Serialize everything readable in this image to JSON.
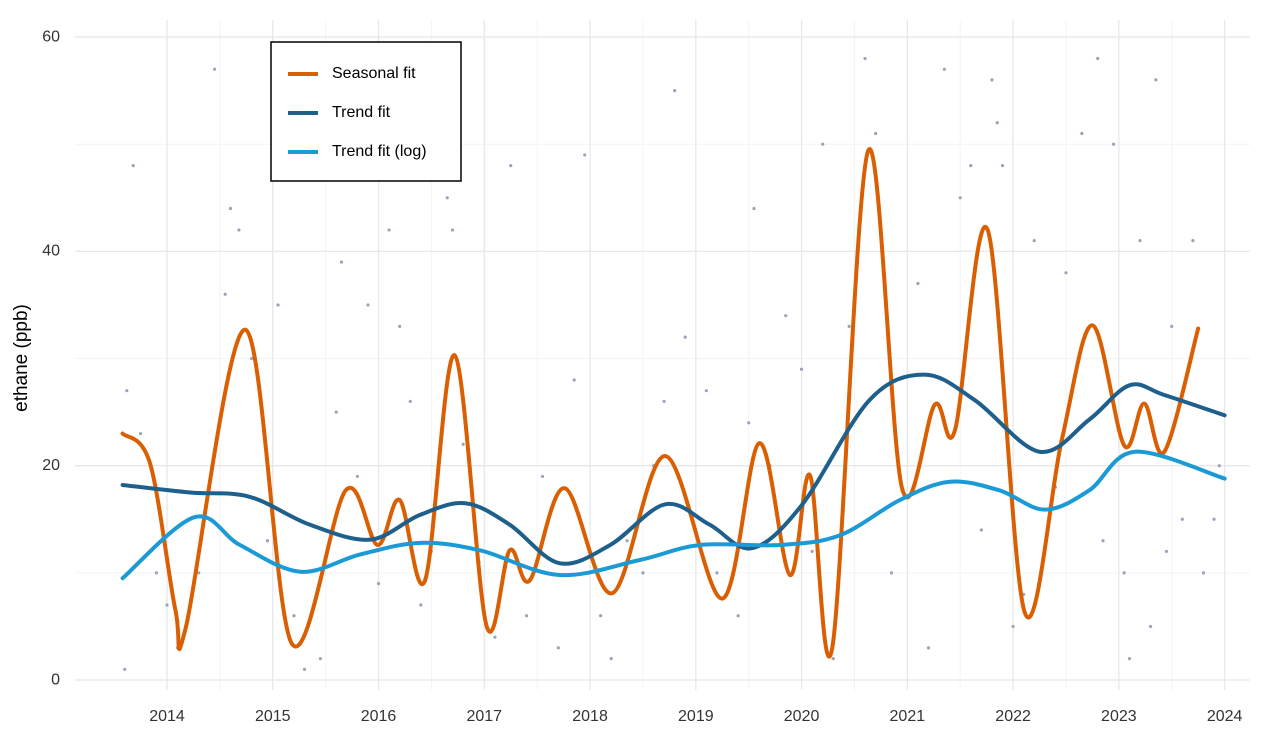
{
  "chart_data": {
    "type": "line",
    "ylabel": "ethane (ppb)",
    "xlim": [
      2013.13,
      2024.24
    ],
    "ylim": [
      -0.93,
      61.59
    ],
    "xticks": [
      2014,
      2015,
      2016,
      2017,
      2018,
      2019,
      2020,
      2021,
      2022,
      2023,
      2024
    ],
    "yticks": [
      0,
      20,
      40,
      60
    ],
    "grid": true,
    "minor_grid": true,
    "legend": "top-left",
    "series": [
      {
        "name": "Seasonal fit",
        "color": "#d95f02",
        "x": [
          2013.58,
          2013.84,
          2014.08,
          2014.18,
          2014.74,
          2015.18,
          2015.69,
          2015.99,
          2016.2,
          2016.44,
          2016.72,
          2017.02,
          2017.24,
          2017.43,
          2017.76,
          2018.21,
          2018.71,
          2019.25,
          2019.6,
          2019.89,
          2020.08,
          2020.29,
          2020.63,
          2020.95,
          2021.26,
          2021.45,
          2021.76,
          2022.11,
          2022.46,
          2022.75,
          2023.05,
          2023.24,
          2023.43,
          2023.75
        ],
        "values": [
          23.0,
          20.2,
          6.5,
          5.0,
          32.7,
          3.4,
          17.7,
          12.6,
          16.8,
          9.3,
          30.3,
          5.1,
          12.1,
          9.3,
          17.9,
          8.1,
          20.9,
          7.6,
          22.1,
          9.8,
          19.1,
          3.0,
          49.4,
          17.9,
          25.7,
          23.3,
          42.0,
          6.3,
          22.4,
          33.1,
          21.9,
          25.8,
          21.3,
          32.8
        ]
      },
      {
        "name": "Trend fit",
        "color": "#1f5f8b",
        "x": [
          2013.58,
          2014.22,
          2014.78,
          2015.35,
          2015.92,
          2016.39,
          2016.82,
          2017.24,
          2017.71,
          2018.19,
          2018.71,
          2019.13,
          2019.53,
          2020.0,
          2020.64,
          2021.16,
          2021.64,
          2022.25,
          2022.72,
          2023.1,
          2023.43,
          2024.0
        ],
        "values": [
          18.2,
          17.5,
          17.1,
          14.5,
          13.1,
          15.4,
          16.5,
          14.5,
          10.9,
          12.6,
          16.4,
          14.5,
          12.3,
          16.3,
          26.1,
          28.5,
          26.1,
          21.3,
          24.3,
          27.5,
          26.6,
          24.7
        ]
      },
      {
        "name": "Trend fit (log)",
        "color": "#1b9ad6",
        "x": [
          2013.58,
          2014.26,
          2014.69,
          2015.26,
          2015.82,
          2016.39,
          2016.96,
          2017.71,
          2018.47,
          2019.04,
          2019.79,
          2020.36,
          2020.93,
          2021.4,
          2021.87,
          2022.3,
          2022.72,
          2023.15,
          2024.0
        ],
        "values": [
          9.5,
          15.2,
          12.6,
          10.1,
          11.7,
          12.8,
          12.1,
          9.8,
          11.2,
          12.6,
          12.6,
          13.5,
          16.8,
          18.5,
          17.7,
          15.9,
          17.7,
          21.3,
          18.8
        ]
      }
    ],
    "points": {
      "color": "#9aa4b8",
      "x": [
        2013.6,
        2013.62,
        2013.68,
        2013.75,
        2013.9,
        2014.0,
        2014.1,
        2014.3,
        2014.45,
        2014.55,
        2014.6,
        2014.68,
        2014.8,
        2014.95,
        2015.05,
        2015.2,
        2015.3,
        2015.45,
        2015.6,
        2015.65,
        2015.8,
        2015.9,
        2016.0,
        2016.1,
        2016.2,
        2016.3,
        2016.4,
        2016.5,
        2016.65,
        2016.7,
        2016.8,
        2016.95,
        2017.1,
        2017.25,
        2017.4,
        2017.55,
        2017.7,
        2017.85,
        2017.95,
        2018.1,
        2018.2,
        2018.35,
        2018.5,
        2018.6,
        2018.7,
        2018.8,
        2018.9,
        2019.05,
        2019.1,
        2019.2,
        2019.4,
        2019.5,
        2019.55,
        2019.7,
        2019.85,
        2020.0,
        2020.1,
        2020.2,
        2020.3,
        2020.45,
        2020.6,
        2020.7,
        2020.85,
        2021.0,
        2021.1,
        2021.2,
        2021.35,
        2021.5,
        2021.6,
        2021.7,
        2021.8,
        2021.85,
        2021.9,
        2022.0,
        2022.1,
        2022.2,
        2022.4,
        2022.5,
        2022.65,
        2022.8,
        2022.85,
        2022.95,
        2023.05,
        2023.1,
        2023.2,
        2023.3,
        2023.35,
        2023.45,
        2023.5,
        2023.6,
        2023.7,
        2023.8,
        2023.9,
        2023.95
      ],
      "y": [
        1,
        27,
        48,
        23,
        10,
        7,
        3,
        10,
        57,
        36,
        44,
        42,
        30,
        13,
        35,
        6,
        1,
        2,
        25,
        39,
        19,
        35,
        9,
        42,
        33,
        26,
        7,
        12,
        45,
        42,
        22,
        11,
        4,
        48,
        6,
        19,
        3,
        28,
        49,
        6,
        2,
        13,
        10,
        20,
        26,
        55,
        32,
        15,
        27,
        10,
        6,
        24,
        44,
        20,
        34,
        29,
        12,
        50,
        2,
        33,
        58,
        51,
        10,
        17,
        37,
        3,
        57,
        45,
        48,
        14,
        56,
        52,
        48,
        5,
        8,
        41,
        18,
        38,
        51,
        58,
        13,
        50,
        10,
        2,
        41,
        5,
        56,
        12,
        33,
        15,
        41,
        10,
        15,
        20
      ]
    }
  }
}
